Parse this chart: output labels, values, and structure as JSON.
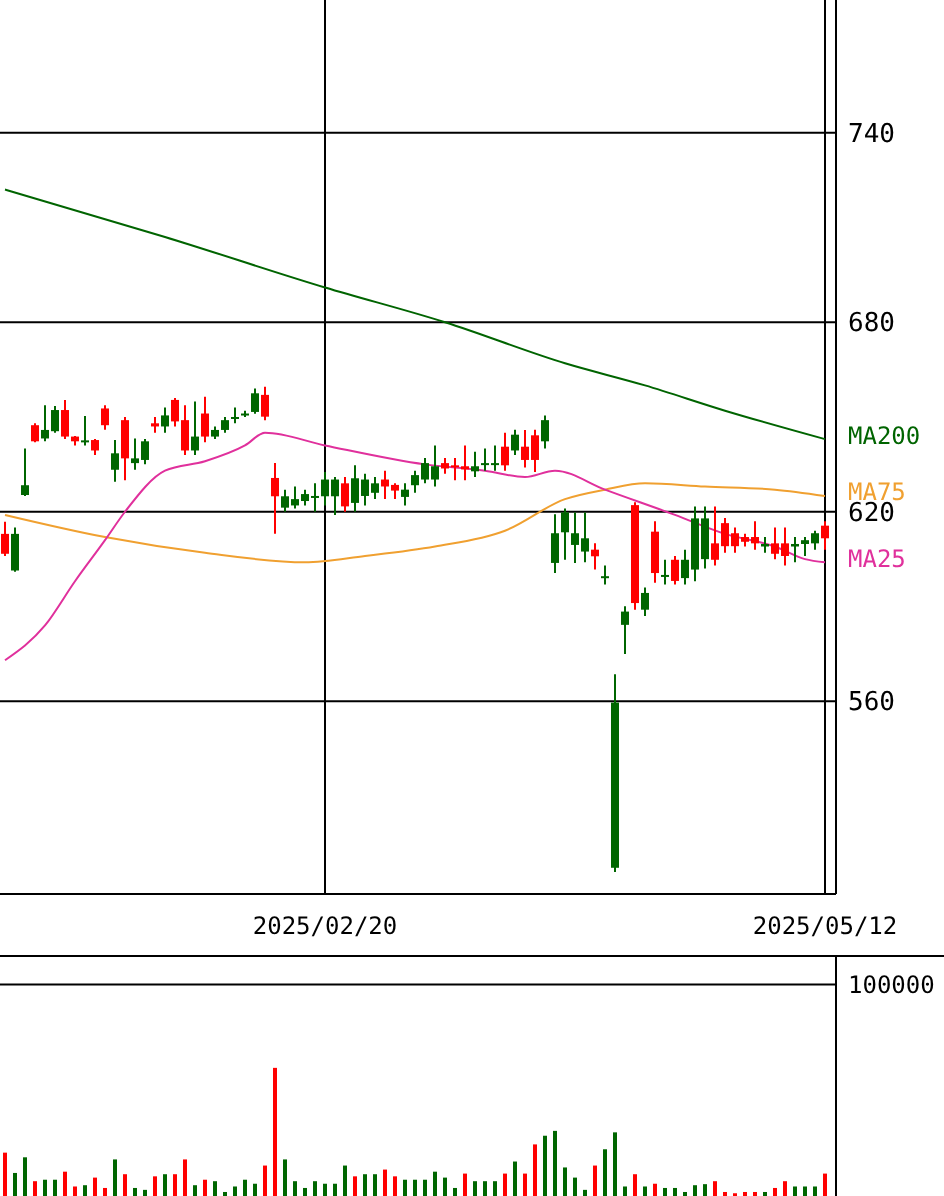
{
  "chart_data": [
    {
      "type": "candlestick",
      "categories": [
        null,
        null,
        null,
        null,
        null,
        null,
        null,
        null,
        null,
        null,
        null,
        null,
        null,
        null,
        null,
        null,
        null,
        null,
        null,
        null,
        null,
        null,
        null,
        null,
        null,
        null,
        null,
        null,
        null,
        null,
        null,
        null,
        "2025/02/20",
        null,
        null,
        null,
        null,
        null,
        null,
        null,
        null,
        null,
        null,
        null,
        null,
        null,
        null,
        null,
        null,
        null,
        null,
        null,
        null,
        null,
        null,
        null,
        null,
        null,
        null,
        null,
        null,
        null,
        null,
        null,
        null,
        null,
        null,
        null,
        null,
        null,
        null,
        null,
        null,
        null,
        null,
        null,
        null,
        null,
        null,
        null,
        null,
        null,
        "2025/05/12"
      ],
      "ohlc": [
        [
          606.7,
          616.8,
          606,
          613
        ],
        [
          613,
          615,
          601,
          601.4
        ],
        [
          628.4,
          640,
          625,
          625.3
        ],
        [
          642.3,
          648,
          642,
          647.4
        ],
        [
          645.9,
          653.7,
          642.3,
          643.2
        ],
        [
          652.2,
          653.5,
          645,
          645.5
        ],
        [
          643.8,
          655.4,
          643,
          652.2
        ],
        [
          642.3,
          644,
          641,
          643.8
        ],
        [
          642.6,
          650.3,
          641,
          642.3
        ],
        [
          639.4,
          643,
          638,
          642.7
        ],
        [
          647.4,
          653.7,
          646,
          652.7
        ],
        [
          638.5,
          642.7,
          629.5,
          633.3
        ],
        [
          636.9,
          650,
          630,
          649
        ],
        [
          636.9,
          643.2,
          633.3,
          635.4
        ],
        [
          642.3,
          643,
          635,
          636.4
        ],
        [
          647,
          650,
          645,
          648
        ],
        [
          650.5,
          653,
          645,
          647
        ],
        [
          648.6,
          656,
          647,
          655.4
        ],
        [
          639.4,
          653.7,
          638,
          649
        ],
        [
          643.8,
          654.9,
          638,
          639.4
        ],
        [
          643.8,
          656.4,
          642,
          651.1
        ],
        [
          645.9,
          647,
          643,
          643.8
        ],
        [
          649,
          650,
          645,
          645.9
        ],
        [
          650,
          653,
          648,
          649.4
        ],
        [
          651.1,
          652,
          650,
          651.1
        ],
        [
          657.5,
          659,
          651,
          651.6
        ],
        [
          650.1,
          659.6,
          649,
          657
        ],
        [
          624.9,
          635.4,
          613,
          630.7
        ],
        [
          624.9,
          627,
          620,
          621.3
        ],
        [
          624,
          628,
          621,
          622
        ],
        [
          625.6,
          627,
          622,
          623.4
        ],
        [
          625,
          629,
          620,
          624.5
        ],
        [
          630.2,
          632.6,
          622,
          624.9
        ],
        [
          630.2,
          631,
          619,
          624.9
        ],
        [
          621.7,
          631,
          620,
          629
        ],
        [
          630.6,
          634.7,
          620,
          622.8
        ],
        [
          630.2,
          632,
          622,
          625
        ],
        [
          629,
          631,
          624,
          626
        ],
        [
          628,
          633,
          624,
          630.2
        ],
        [
          626.7,
          629,
          624,
          628.5
        ],
        [
          627,
          629,
          622,
          624.7
        ],
        [
          631.6,
          633,
          626,
          628.4
        ],
        [
          635.4,
          637,
          629,
          630.2
        ],
        [
          634.4,
          641,
          628,
          630.2
        ],
        [
          633.7,
          637,
          632,
          635.4
        ],
        [
          634.4,
          637,
          630,
          634.7
        ],
        [
          633.4,
          641,
          630,
          634.4
        ],
        [
          634.4,
          639,
          631,
          632.8
        ],
        [
          635.4,
          640,
          633,
          635.4
        ],
        [
          635.4,
          641,
          633,
          635.4
        ],
        [
          634.7,
          645,
          633,
          640.6
        ],
        [
          644.4,
          646,
          638,
          639.4
        ],
        [
          636.4,
          645.9,
          634,
          640.6
        ],
        [
          636.4,
          646,
          632.6,
          644.2
        ],
        [
          649,
          650.5,
          640,
          642.3
        ],
        [
          613.2,
          619.2,
          600.6,
          603.8
        ],
        [
          619.8,
          621,
          604.8,
          613.5
        ],
        [
          613.2,
          619.8,
          603.8,
          609.5
        ],
        [
          611.6,
          619.8,
          604,
          607.4
        ],
        [
          605.9,
          610,
          601.7,
          608
        ],
        [
          599.6,
          603,
          597,
          599.6
        ],
        [
          559.6,
          568.6,
          506,
          507.3
        ],
        [
          588.4,
          590.1,
          575,
          584.2
        ],
        [
          591.1,
          623,
          589,
          622.1
        ],
        [
          594.3,
          596,
          587,
          589
        ],
        [
          600.6,
          617,
          597.5,
          613.7
        ],
        [
          600,
          604.8,
          597,
          599.6
        ],
        [
          598.1,
          606,
          597,
          604.8
        ],
        [
          604.8,
          608,
          597,
          599
        ],
        [
          617.9,
          621.7,
          598,
          601.7
        ],
        [
          617.9,
          621.7,
          602,
          605
        ],
        [
          604.8,
          621.7,
          603,
          610
        ],
        [
          609.1,
          618,
          607,
          616.4
        ],
        [
          609.1,
          615,
          607,
          613.2
        ],
        [
          610.5,
          613,
          609,
          612
        ],
        [
          610,
          617,
          608,
          612
        ],
        [
          609.8,
          612,
          607,
          609
        ],
        [
          606.7,
          615,
          605,
          610
        ],
        [
          606,
          615,
          603,
          610
        ],
        [
          609.8,
          612,
          604,
          609
        ],
        [
          611,
          612,
          606,
          609.8
        ],
        [
          613.2,
          614,
          608,
          610
        ],
        [
          611.6,
          617,
          608,
          615.6
        ]
      ],
      "colors": [
        "#ff0000",
        "#006600",
        "#006600",
        "#ff0000",
        "#006600",
        "#006600",
        "#ff0000",
        "#ff0000",
        "#006600",
        "#ff0000",
        "#ff0000",
        "#006600",
        "#ff0000",
        "#006600",
        "#006600",
        "#ff0000",
        "#006600",
        "#ff0000",
        "#ff0000",
        "#006600",
        "#ff0000",
        "#006600",
        "#006600",
        "#006600",
        "#006600",
        "#006600",
        "#ff0000",
        "#ff0000",
        "#006600",
        "#006600",
        "#006600",
        "#006600",
        "#006600",
        "#006600",
        "#ff0000",
        "#006600",
        "#006600",
        "#006600",
        "#ff0000",
        "#ff0000",
        "#006600",
        "#006600",
        "#006600",
        "#006600",
        "#ff0000",
        "#ff0000",
        "#ff0000",
        "#006600",
        "#006600",
        "#006600",
        "#ff0000",
        "#006600",
        "#ff0000",
        "#ff0000",
        "#006600",
        "#006600",
        "#006600",
        "#006600",
        "#006600",
        "#ff0000",
        "#006600",
        "#006600",
        "#006600",
        "#ff0000",
        "#006600",
        "#ff0000",
        "#006600",
        "#ff0000",
        "#006600",
        "#006600",
        "#006600",
        "#ff0000",
        "#ff0000",
        "#ff0000",
        "#ff0000",
        "#ff0000",
        "#006600",
        "#ff0000",
        "#ff0000",
        "#006600",
        "#006600",
        "#006600",
        "#ff0000"
      ],
      "series": [
        {
          "type": "line",
          "name": "MA200",
          "color": "#006400",
          "values": [
            722,
            null,
            null,
            null,
            null,
            null,
            null,
            null,
            null,
            null,
            null,
            null,
            null,
            null,
            null,
            null,
            707,
            null,
            null,
            null,
            null,
            null,
            null,
            null,
            null,
            null,
            null,
            null,
            null,
            null,
            null,
            null,
            691,
            null,
            null,
            null,
            null,
            null,
            null,
            null,
            null,
            null,
            null,
            null,
            680,
            null,
            null,
            null,
            null,
            null,
            null,
            null,
            null,
            null,
            null,
            null,
            667,
            null,
            null,
            null,
            null,
            null,
            null,
            null,
            660,
            null,
            null,
            null,
            null,
            null,
            null,
            null,
            652,
            null,
            null,
            null,
            null,
            null,
            null,
            null,
            null,
            null,
            643
          ]
        },
        {
          "type": "line",
          "name": "MA75",
          "color": "#f0a030",
          "values": [
            619,
            null,
            null,
            null,
            null,
            null,
            null,
            null,
            null,
            null,
            612,
            null,
            null,
            null,
            null,
            null,
            null,
            null,
            null,
            null,
            607,
            null,
            null,
            null,
            null,
            null,
            null,
            null,
            null,
            null,
            604,
            null,
            null,
            null,
            null,
            null,
            606,
            null,
            null,
            null,
            null,
            null,
            null,
            609,
            null,
            null,
            null,
            null,
            null,
            null,
            614,
            null,
            null,
            null,
            null,
            null,
            624,
            null,
            null,
            null,
            627,
            null,
            null,
            null,
            629,
            null,
            null,
            null,
            null,
            null,
            628,
            null,
            null,
            null,
            null,
            null,
            null,
            627,
            null,
            null,
            null,
            null,
            625
          ]
        },
        {
          "type": "line",
          "name": "MA25",
          "color": "#e0309c",
          "values": [
            573,
            null,
            null,
            null,
            584,
            null,
            null,
            598,
            null,
            null,
            611,
            null,
            620,
            null,
            null,
            null,
            633,
            null,
            null,
            null,
            636,
            null,
            null,
            null,
            641,
            null,
            645,
            null,
            null,
            null,
            null,
            null,
            641,
            null,
            null,
            null,
            null,
            null,
            null,
            null,
            null,
            null,
            635,
            null,
            null,
            null,
            null,
            null,
            633,
            null,
            null,
            null,
            631,
            null,
            null,
            633,
            null,
            null,
            null,
            null,
            627,
            null,
            null,
            null,
            null,
            null,
            null,
            619,
            null,
            null,
            null,
            null,
            613,
            null,
            null,
            null,
            null,
            609,
            null,
            null,
            605,
            null,
            604
          ]
        }
      ],
      "ylim": [
        499,
        782
      ],
      "yticks": [
        560,
        620,
        680,
        740
      ],
      "grid": true
    },
    {
      "type": "bar",
      "categories": [
        null,
        null,
        null,
        null,
        null,
        null,
        null,
        null,
        null,
        null,
        null,
        null,
        null,
        null,
        null,
        null,
        null,
        null,
        null,
        null,
        null,
        null,
        null,
        null,
        null,
        null,
        null,
        null,
        null,
        null,
        null,
        null,
        null,
        null,
        null,
        null,
        null,
        null,
        null,
        null,
        null,
        null,
        null,
        null,
        null,
        null,
        null,
        null,
        null,
        null,
        null,
        null,
        null,
        null,
        null,
        null,
        null,
        null,
        null,
        null,
        null,
        null,
        null,
        null,
        null,
        null,
        null,
        null,
        null,
        null,
        null,
        null,
        null,
        null,
        null,
        null,
        null,
        null,
        null,
        null,
        null,
        null,
        null
      ],
      "values": [
        20500,
        10900,
        18300,
        7000,
        7700,
        7700,
        11500,
        4500,
        5100,
        8700,
        3800,
        17300,
        10300,
        3800,
        2900,
        9300,
        10300,
        10300,
        17300,
        5100,
        7700,
        7000,
        1900,
        4500,
        7700,
        5800,
        14400,
        60600,
        17300,
        7000,
        3800,
        7000,
        5800,
        5800,
        14400,
        9300,
        10300,
        10300,
        12500,
        9300,
        7700,
        7700,
        7700,
        11500,
        8700,
        3800,
        10600,
        7000,
        7000,
        7000,
        10600,
        16300,
        10600,
        24400,
        28500,
        30800,
        13500,
        8700,
        2900,
        14400,
        22100,
        30100,
        4500,
        10300,
        4500,
        5800,
        3800,
        3800,
        1900,
        5100,
        5600,
        7000,
        1900,
        1300,
        1900,
        1900,
        1900,
        3800,
        7000,
        4500,
        4500,
        4500,
        10600
      ],
      "colors": [
        "#ff0000",
        "#006600",
        "#006600",
        "#ff0000",
        "#006600",
        "#006600",
        "#ff0000",
        "#ff0000",
        "#006600",
        "#ff0000",
        "#ff0000",
        "#006600",
        "#ff0000",
        "#006600",
        "#006600",
        "#ff0000",
        "#006600",
        "#ff0000",
        "#ff0000",
        "#006600",
        "#ff0000",
        "#006600",
        "#006600",
        "#006600",
        "#006600",
        "#006600",
        "#ff0000",
        "#ff0000",
        "#006600",
        "#006600",
        "#006600",
        "#006600",
        "#006600",
        "#006600",
        "#006600",
        "#ff0000",
        "#006600",
        "#006600",
        "#ff0000",
        "#ff0000",
        "#006600",
        "#006600",
        "#006600",
        "#006600",
        "#006600",
        "#006600",
        "#ff0000",
        "#006600",
        "#006600",
        "#006600",
        "#ff0000",
        "#006600",
        "#ff0000",
        "#ff0000",
        "#006600",
        "#006600",
        "#006600",
        "#006600",
        "#006600",
        "#ff0000",
        "#006600",
        "#006600",
        "#006600",
        "#ff0000",
        "#006600",
        "#ff0000",
        "#006600",
        "#006600",
        "#006600",
        "#006600",
        "#006600",
        "#ff0000",
        "#ff0000",
        "#ff0000",
        "#ff0000",
        "#ff0000",
        "#006600",
        "#ff0000",
        "#ff0000",
        "#006600",
        "#006600",
        "#006600",
        "#ff0000"
      ],
      "ylim": [
        0,
        113500
      ],
      "yticks": [
        100000
      ],
      "grid": "y"
    }
  ]
}
